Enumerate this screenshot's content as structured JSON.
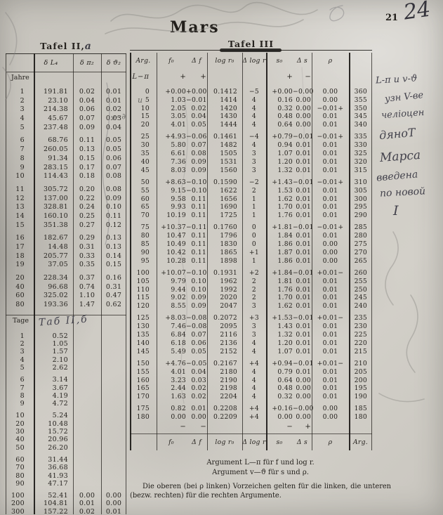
{
  "page": {
    "title": "Mars",
    "page_number": "21",
    "corner_number": "24"
  },
  "tafel2": {
    "title": "Tafel II,",
    "title_annotation": "a",
    "col_headers": [
      "δ L₄",
      "δ π₂",
      "δ ϑ₂"
    ],
    "jahre_label": "Jahre",
    "tage_label": "Tage",
    "tage_annotation": "Таб II,б",
    "jahre_groups": [
      [
        [
          "1",
          "191.81",
          "0.02",
          "0.01"
        ],
        [
          "2",
          "23.10",
          "0.04",
          "0.01"
        ],
        [
          "3",
          "214.38",
          "0.06",
          "0.02"
        ],
        [
          "4",
          "45.67",
          "0.07",
          "0.03"
        ],
        [
          "5",
          "237.48",
          "0.09",
          "0.04"
        ]
      ],
      [
        [
          "6",
          "68.76",
          "0.11",
          "0.05"
        ],
        [
          "7",
          "260.05",
          "0.13",
          "0.05"
        ],
        [
          "8",
          "91.34",
          "0.15",
          "0.06"
        ],
        [
          "9",
          "283.15",
          "0.17",
          "0.07"
        ],
        [
          "10",
          "114.43",
          "0.18",
          "0.08"
        ]
      ],
      [
        [
          "11",
          "305.72",
          "0.20",
          "0.08"
        ],
        [
          "12",
          "137.00",
          "0.22",
          "0.09"
        ],
        [
          "13",
          "328.81",
          "0.24",
          "0.10"
        ],
        [
          "14",
          "160.10",
          "0.25",
          "0.11"
        ],
        [
          "15",
          "351.38",
          "0.27",
          "0.12"
        ]
      ],
      [
        [
          "16",
          "182.67",
          "0.29",
          "0.13"
        ],
        [
          "17",
          "14.48",
          "0.31",
          "0.13"
        ],
        [
          "18",
          "205.77",
          "0.33",
          "0.14"
        ],
        [
          "19",
          "37.05",
          "0.35",
          "0.15"
        ]
      ],
      [
        [
          "20",
          "228.34",
          "0.37",
          "0.16"
        ],
        [
          "40",
          "96.68",
          "0.74",
          "0.31"
        ],
        [
          "60",
          "325.02",
          "1.10",
          "0.47"
        ],
        [
          "80",
          "193.36",
          "1.47",
          "0.62"
        ]
      ]
    ],
    "tage_groups": [
      [
        [
          "1",
          "0.52",
          "",
          ""
        ],
        [
          "2",
          "1.05",
          "",
          ""
        ],
        [
          "3",
          "1.57",
          "",
          ""
        ],
        [
          "4",
          "2.10",
          "",
          ""
        ],
        [
          "5",
          "2.62",
          "",
          ""
        ]
      ],
      [
        [
          "6",
          "3.14",
          "",
          ""
        ],
        [
          "7",
          "3.67",
          "",
          ""
        ],
        [
          "8",
          "4.19",
          "",
          ""
        ],
        [
          "9",
          "4.72",
          "",
          ""
        ]
      ],
      [
        [
          "10",
          "5.24",
          "",
          ""
        ],
        [
          "20",
          "10.48",
          "",
          ""
        ],
        [
          "30",
          "15.72",
          "",
          ""
        ],
        [
          "40",
          "20.96",
          "",
          ""
        ],
        [
          "50",
          "26.20",
          "",
          ""
        ]
      ],
      [
        [
          "60",
          "31.44",
          "",
          ""
        ],
        [
          "70",
          "36.68",
          "",
          ""
        ],
        [
          "80",
          "41.93",
          "",
          ""
        ],
        [
          "90",
          "47.17",
          "",
          ""
        ]
      ],
      [
        [
          "100",
          "52.41",
          "0.00",
          "0.00"
        ],
        [
          "200",
          "104.81",
          "0.01",
          "0.00"
        ],
        [
          "300",
          "157.22",
          "0.02",
          "0.01"
        ]
      ]
    ]
  },
  "tafel3": {
    "title": "Tafel III",
    "headers": {
      "arg": "Arg.",
      "f0": "f₀",
      "df": "Δ f",
      "logr": "log r₀",
      "dlogr": "Δ log r",
      "s0": "s₀",
      "ds": "Δ s",
      "rho": "ρ",
      "arg2": "Arg."
    },
    "arg_note_left": "L−π",
    "sign_top": {
      "f0": "+",
      "df": "+",
      "s0": "+",
      "ds": "−"
    },
    "sign_bottom": {
      "f0": "−",
      "df": "−",
      "s0": "−",
      "ds": "+"
    },
    "groups": [
      [
        [
          "0",
          "+0.00",
          "+0.00",
          "0.1412",
          "−5",
          "+0.00",
          "−0.00",
          "0.00",
          "360"
        ],
        [
          "5",
          "1.03",
          "−0.01",
          "1414",
          "4",
          "0.16",
          "0.00",
          "0.00",
          "355"
        ],
        [
          "10",
          "2.05",
          "0.02",
          "1420",
          "4",
          "0.32",
          "0.00",
          "−0.01+",
          "350"
        ],
        [
          "15",
          "3.05",
          "0.04",
          "1430",
          "4",
          "0.48",
          "0.00",
          "0.01",
          "345"
        ],
        [
          "20",
          "4.01",
          "0.05",
          "1444",
          "4",
          "0.64",
          "0.00",
          "0.01",
          "340"
        ]
      ],
      [
        [
          "25",
          "+4.93",
          "−0.06",
          "0.1461",
          "−4",
          "+0.79",
          "−0.01",
          "−0.01+",
          "335"
        ],
        [
          "30",
          "5.80",
          "0.07",
          "1482",
          "4",
          "0.94",
          "0.01",
          "0.01",
          "330"
        ],
        [
          "35",
          "6.61",
          "0.08",
          "1505",
          "3",
          "1.07",
          "0.01",
          "0.01",
          "325"
        ],
        [
          "40",
          "7.36",
          "0.09",
          "1531",
          "3",
          "1.20",
          "0.01",
          "0.01",
          "320"
        ],
        [
          "45",
          "8.03",
          "0.09",
          "1560",
          "3",
          "1.32",
          "0.01",
          "0.01",
          "315"
        ]
      ],
      [
        [
          "50",
          "+8.63",
          "−0.10",
          "0.1590",
          "−2",
          "+1.43",
          "−0.01",
          "−0.01+",
          "310"
        ],
        [
          "55",
          "9.15",
          "−0.10",
          "1622",
          "2",
          "1.53",
          "0.01",
          "0.01",
          "305"
        ],
        [
          "60",
          "9.58",
          "0.11",
          "1656",
          "1",
          "1.62",
          "0.01",
          "0.01",
          "300"
        ],
        [
          "65",
          "9.93",
          "0.11",
          "1690",
          "1",
          "1.70",
          "0.01",
          "0.01",
          "295"
        ],
        [
          "70",
          "10.19",
          "0.11",
          "1725",
          "1",
          "1.76",
          "0.01",
          "0.01",
          "290"
        ]
      ],
      [
        [
          "75",
          "+10.37",
          "−0.11",
          "0.1760",
          "0",
          "+1.81",
          "−0.01",
          "−0.01+",
          "285"
        ],
        [
          "80",
          "10.47",
          "0.11",
          "1796",
          "0",
          "1.84",
          "0.01",
          "0.01",
          "280"
        ],
        [
          "85",
          "10.49",
          "0.11",
          "1830",
          "0",
          "1.86",
          "0.01",
          "0.00",
          "275"
        ],
        [
          "90",
          "10.42",
          "0.11",
          "1865",
          "+1",
          "1.87",
          "0.01",
          "0.00",
          "270"
        ],
        [
          "95",
          "10.28",
          "0.11",
          "1898",
          "1",
          "1.86",
          "0.01",
          "0.00",
          "265"
        ]
      ],
      [
        [
          "100",
          "+10.07",
          "−0.10",
          "0.1931",
          "+2",
          "+1.84",
          "−0.01",
          "+0.01−",
          "260"
        ],
        [
          "105",
          "9.79",
          "0.10",
          "1962",
          "2",
          "1.81",
          "0.01",
          "0.01",
          "255"
        ],
        [
          "110",
          "9.44",
          "0.10",
          "1992",
          "2",
          "1.76",
          "0.01",
          "0.01",
          "250"
        ],
        [
          "115",
          "9.02",
          "0.09",
          "2020",
          "2",
          "1.70",
          "0.01",
          "0.01",
          "245"
        ],
        [
          "120",
          "8.55",
          "0.09",
          "2047",
          "3",
          "1.62",
          "0.01",
          "0.01",
          "240"
        ]
      ],
      [
        [
          "125",
          "+8.03",
          "−0.08",
          "0.2072",
          "+3",
          "+1.53",
          "−0.01",
          "+0.01−",
          "235"
        ],
        [
          "130",
          "7.46",
          "−0.08",
          "2095",
          "3",
          "1.43",
          "0.01",
          "0.01",
          "230"
        ],
        [
          "135",
          "6.84",
          "0.07",
          "2116",
          "3",
          "1.32",
          "0.01",
          "0.01",
          "225"
        ],
        [
          "140",
          "6.18",
          "0.06",
          "2136",
          "4",
          "1.20",
          "0.01",
          "0.01",
          "220"
        ],
        [
          "145",
          "5.49",
          "0.05",
          "2152",
          "4",
          "1.07",
          "0.01",
          "0.01",
          "215"
        ]
      ],
      [
        [
          "150",
          "+4.76",
          "−0.05",
          "0.2167",
          "+4",
          "+0.94",
          "−0.01",
          "+0.01−",
          "210"
        ],
        [
          "155",
          "4.01",
          "0.04",
          "2180",
          "4",
          "0.79",
          "0.01",
          "0.01",
          "205"
        ],
        [
          "160",
          "3.23",
          "0.03",
          "2190",
          "4",
          "0.64",
          "0.00",
          "0.01",
          "200"
        ],
        [
          "165",
          "2.44",
          "0.02",
          "2198",
          "4",
          "0.48",
          "0.00",
          "0.01",
          "195"
        ],
        [
          "170",
          "1.63",
          "0.02",
          "2204",
          "4",
          "0.32",
          "0.00",
          "0.01",
          "190"
        ]
      ],
      [
        [
          "175",
          "0.82",
          "0.01",
          "0.2208",
          "+4",
          "+0.16",
          "−0.00",
          "0.00",
          "185"
        ],
        [
          "180",
          "0.00",
          "0.00",
          "0.2209",
          "+4",
          "0.00",
          "0.00",
          "0.00",
          "180"
        ]
      ]
    ]
  },
  "notes": {
    "line1": "Argument L—π für f und log r.",
    "line2": "Argument v—ϑ für s und ρ.",
    "paragraph": "Die oberen (bei ρ linken) Vorzeichen gelten für die linken, die unteren (bezw. rechten) für die rechten Argumente."
  },
  "handwriting": {
    "arg_margin_top": "u",
    "arg_margin_mid": "v−∂",
    "right_margin": [
      "L-π и v-ϑ",
      "узн V-ве",
      "челіоцен",
      "дяноТ",
      "Марса",
      "введена",
      "по новой",
      "I"
    ]
  }
}
